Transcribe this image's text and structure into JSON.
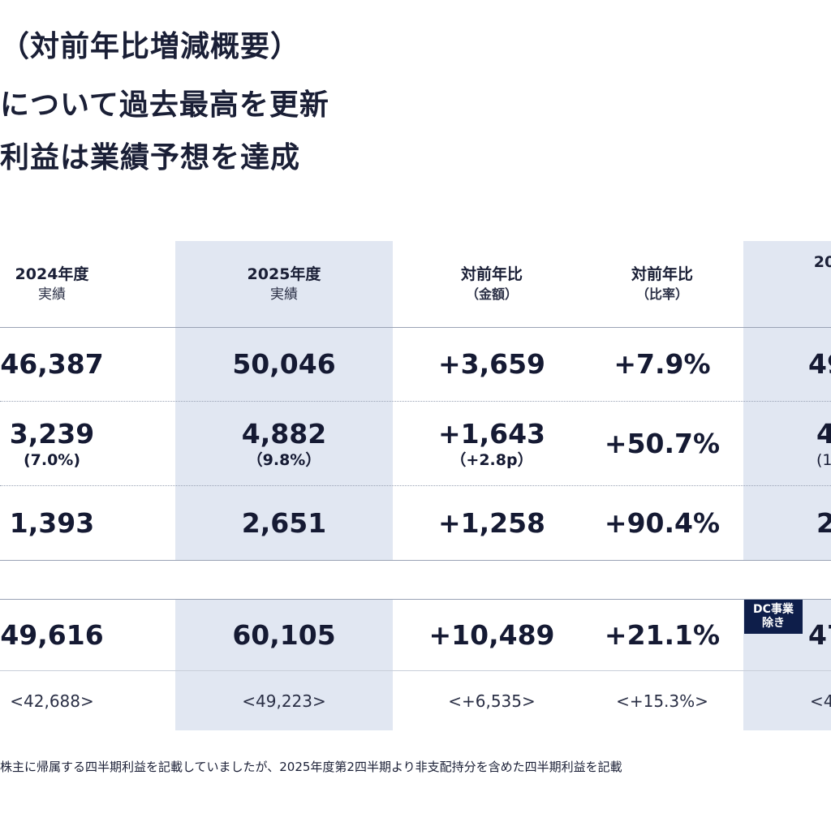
{
  "title": "（対前年比増減概要）",
  "headlines": [
    "について過去最高を更新",
    "利益は業績予想を達成"
  ],
  "columns": [
    {
      "main": "2024年度",
      "sub": "実績"
    },
    {
      "main": "2025年度",
      "sub": "実績"
    },
    {
      "main": "対前年比",
      "sub": "（金額）"
    },
    {
      "main": "対前年比",
      "sub": "（比率）"
    },
    {
      "main": "20",
      "sub": ""
    }
  ],
  "rows": [
    {
      "c2024": "46,387",
      "c2025": "50,046",
      "diff": "+3,659",
      "rate": "+7.9%",
      "partial": "49"
    },
    {
      "c2024": "3,239",
      "c2024_sub": "(7.0%)",
      "c2025": "4,882",
      "c2025_sub": "（9.8%）",
      "diff": "+1,643",
      "diff_sub": "（+2.8p）",
      "rate": "+50.7%",
      "partial": "4",
      "partial_sub": "(1"
    },
    {
      "c2024": "1,393",
      "c2025": "2,651",
      "diff": "+1,258",
      "rate": "+90.4%",
      "partial": "2"
    },
    {
      "c2024": "49,616",
      "c2025": "60,105",
      "diff": "+10,489",
      "rate": "+21.1%",
      "partial": "47"
    },
    {
      "c2024": "<42,688>",
      "c2025": "<49,223>",
      "diff": "<+6,535>",
      "rate": "<+15.3%>",
      "partial": "<4"
    }
  ],
  "badge": {
    "line1": "DC事業",
    "line2": "除き"
  },
  "footnote": "株主に帰属する四半期利益を記載していましたが、2025年度第2四半期より非支配持分を含めた四半期利益を記載",
  "colors": {
    "shade": "#e1e7f2",
    "badge": "#0e1e4a",
    "text": "#1a1f36"
  }
}
